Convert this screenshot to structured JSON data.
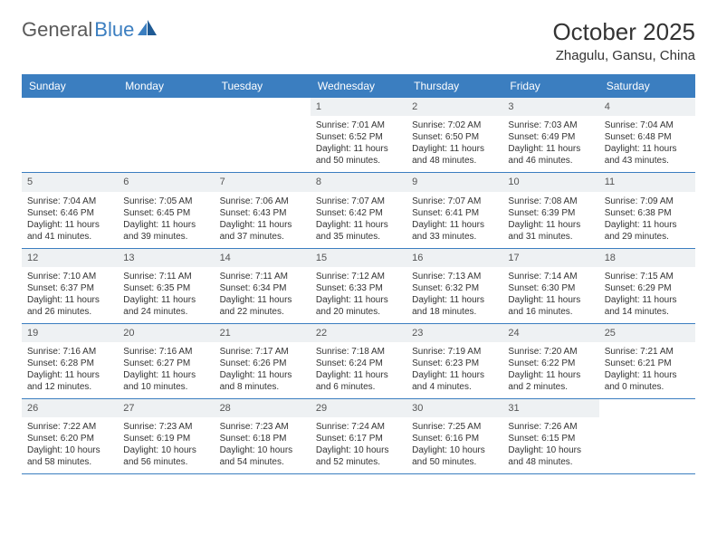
{
  "brand": {
    "part1": "General",
    "part2": "Blue"
  },
  "title": "October 2025",
  "location": "Zhagulu, Gansu, China",
  "colors": {
    "header_bg": "#3b7ec0",
    "header_text": "#ffffff",
    "daynum_bg": "#eef1f3",
    "rule": "#3b7ec0",
    "text": "#333333",
    "logo_gray": "#5a5a5a"
  },
  "day_labels": [
    "Sunday",
    "Monday",
    "Tuesday",
    "Wednesday",
    "Thursday",
    "Friday",
    "Saturday"
  ],
  "weeks": [
    [
      {
        "n": "",
        "sr": "",
        "ss": "",
        "dl": ""
      },
      {
        "n": "",
        "sr": "",
        "ss": "",
        "dl": ""
      },
      {
        "n": "",
        "sr": "",
        "ss": "",
        "dl": ""
      },
      {
        "n": "1",
        "sr": "Sunrise: 7:01 AM",
        "ss": "Sunset: 6:52 PM",
        "dl": "Daylight: 11 hours and 50 minutes."
      },
      {
        "n": "2",
        "sr": "Sunrise: 7:02 AM",
        "ss": "Sunset: 6:50 PM",
        "dl": "Daylight: 11 hours and 48 minutes."
      },
      {
        "n": "3",
        "sr": "Sunrise: 7:03 AM",
        "ss": "Sunset: 6:49 PM",
        "dl": "Daylight: 11 hours and 46 minutes."
      },
      {
        "n": "4",
        "sr": "Sunrise: 7:04 AM",
        "ss": "Sunset: 6:48 PM",
        "dl": "Daylight: 11 hours and 43 minutes."
      }
    ],
    [
      {
        "n": "5",
        "sr": "Sunrise: 7:04 AM",
        "ss": "Sunset: 6:46 PM",
        "dl": "Daylight: 11 hours and 41 minutes."
      },
      {
        "n": "6",
        "sr": "Sunrise: 7:05 AM",
        "ss": "Sunset: 6:45 PM",
        "dl": "Daylight: 11 hours and 39 minutes."
      },
      {
        "n": "7",
        "sr": "Sunrise: 7:06 AM",
        "ss": "Sunset: 6:43 PM",
        "dl": "Daylight: 11 hours and 37 minutes."
      },
      {
        "n": "8",
        "sr": "Sunrise: 7:07 AM",
        "ss": "Sunset: 6:42 PM",
        "dl": "Daylight: 11 hours and 35 minutes."
      },
      {
        "n": "9",
        "sr": "Sunrise: 7:07 AM",
        "ss": "Sunset: 6:41 PM",
        "dl": "Daylight: 11 hours and 33 minutes."
      },
      {
        "n": "10",
        "sr": "Sunrise: 7:08 AM",
        "ss": "Sunset: 6:39 PM",
        "dl": "Daylight: 11 hours and 31 minutes."
      },
      {
        "n": "11",
        "sr": "Sunrise: 7:09 AM",
        "ss": "Sunset: 6:38 PM",
        "dl": "Daylight: 11 hours and 29 minutes."
      }
    ],
    [
      {
        "n": "12",
        "sr": "Sunrise: 7:10 AM",
        "ss": "Sunset: 6:37 PM",
        "dl": "Daylight: 11 hours and 26 minutes."
      },
      {
        "n": "13",
        "sr": "Sunrise: 7:11 AM",
        "ss": "Sunset: 6:35 PM",
        "dl": "Daylight: 11 hours and 24 minutes."
      },
      {
        "n": "14",
        "sr": "Sunrise: 7:11 AM",
        "ss": "Sunset: 6:34 PM",
        "dl": "Daylight: 11 hours and 22 minutes."
      },
      {
        "n": "15",
        "sr": "Sunrise: 7:12 AM",
        "ss": "Sunset: 6:33 PM",
        "dl": "Daylight: 11 hours and 20 minutes."
      },
      {
        "n": "16",
        "sr": "Sunrise: 7:13 AM",
        "ss": "Sunset: 6:32 PM",
        "dl": "Daylight: 11 hours and 18 minutes."
      },
      {
        "n": "17",
        "sr": "Sunrise: 7:14 AM",
        "ss": "Sunset: 6:30 PM",
        "dl": "Daylight: 11 hours and 16 minutes."
      },
      {
        "n": "18",
        "sr": "Sunrise: 7:15 AM",
        "ss": "Sunset: 6:29 PM",
        "dl": "Daylight: 11 hours and 14 minutes."
      }
    ],
    [
      {
        "n": "19",
        "sr": "Sunrise: 7:16 AM",
        "ss": "Sunset: 6:28 PM",
        "dl": "Daylight: 11 hours and 12 minutes."
      },
      {
        "n": "20",
        "sr": "Sunrise: 7:16 AM",
        "ss": "Sunset: 6:27 PM",
        "dl": "Daylight: 11 hours and 10 minutes."
      },
      {
        "n": "21",
        "sr": "Sunrise: 7:17 AM",
        "ss": "Sunset: 6:26 PM",
        "dl": "Daylight: 11 hours and 8 minutes."
      },
      {
        "n": "22",
        "sr": "Sunrise: 7:18 AM",
        "ss": "Sunset: 6:24 PM",
        "dl": "Daylight: 11 hours and 6 minutes."
      },
      {
        "n": "23",
        "sr": "Sunrise: 7:19 AM",
        "ss": "Sunset: 6:23 PM",
        "dl": "Daylight: 11 hours and 4 minutes."
      },
      {
        "n": "24",
        "sr": "Sunrise: 7:20 AM",
        "ss": "Sunset: 6:22 PM",
        "dl": "Daylight: 11 hours and 2 minutes."
      },
      {
        "n": "25",
        "sr": "Sunrise: 7:21 AM",
        "ss": "Sunset: 6:21 PM",
        "dl": "Daylight: 11 hours and 0 minutes."
      }
    ],
    [
      {
        "n": "26",
        "sr": "Sunrise: 7:22 AM",
        "ss": "Sunset: 6:20 PM",
        "dl": "Daylight: 10 hours and 58 minutes."
      },
      {
        "n": "27",
        "sr": "Sunrise: 7:23 AM",
        "ss": "Sunset: 6:19 PM",
        "dl": "Daylight: 10 hours and 56 minutes."
      },
      {
        "n": "28",
        "sr": "Sunrise: 7:23 AM",
        "ss": "Sunset: 6:18 PM",
        "dl": "Daylight: 10 hours and 54 minutes."
      },
      {
        "n": "29",
        "sr": "Sunrise: 7:24 AM",
        "ss": "Sunset: 6:17 PM",
        "dl": "Daylight: 10 hours and 52 minutes."
      },
      {
        "n": "30",
        "sr": "Sunrise: 7:25 AM",
        "ss": "Sunset: 6:16 PM",
        "dl": "Daylight: 10 hours and 50 minutes."
      },
      {
        "n": "31",
        "sr": "Sunrise: 7:26 AM",
        "ss": "Sunset: 6:15 PM",
        "dl": "Daylight: 10 hours and 48 minutes."
      },
      {
        "n": "",
        "sr": "",
        "ss": "",
        "dl": ""
      }
    ]
  ]
}
